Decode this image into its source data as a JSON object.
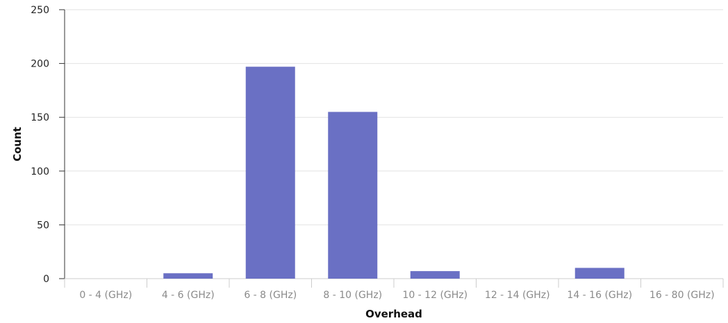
{
  "chart_data": {
    "type": "bar",
    "categories": [
      "0 - 4 (GHz)",
      "4 - 6 (GHz)",
      "6 - 8 (GHz)",
      "8 - 10 (GHz)",
      "10 - 12 (GHz)",
      "12 - 14 (GHz)",
      "14 - 16 (GHz)",
      "16 - 80 (GHz)"
    ],
    "values": [
      0,
      5,
      197,
      155,
      7,
      0,
      10,
      0
    ],
    "xlabel": "Overhead",
    "ylabel": "Count",
    "ylim": [
      0,
      250
    ],
    "yticks": [
      0,
      50,
      100,
      150,
      200,
      250
    ],
    "grid": true,
    "legend": "none",
    "colors": {
      "bar": "#6a70c4",
      "grid": "#e2e2e2",
      "axis": "#cccccc"
    }
  }
}
